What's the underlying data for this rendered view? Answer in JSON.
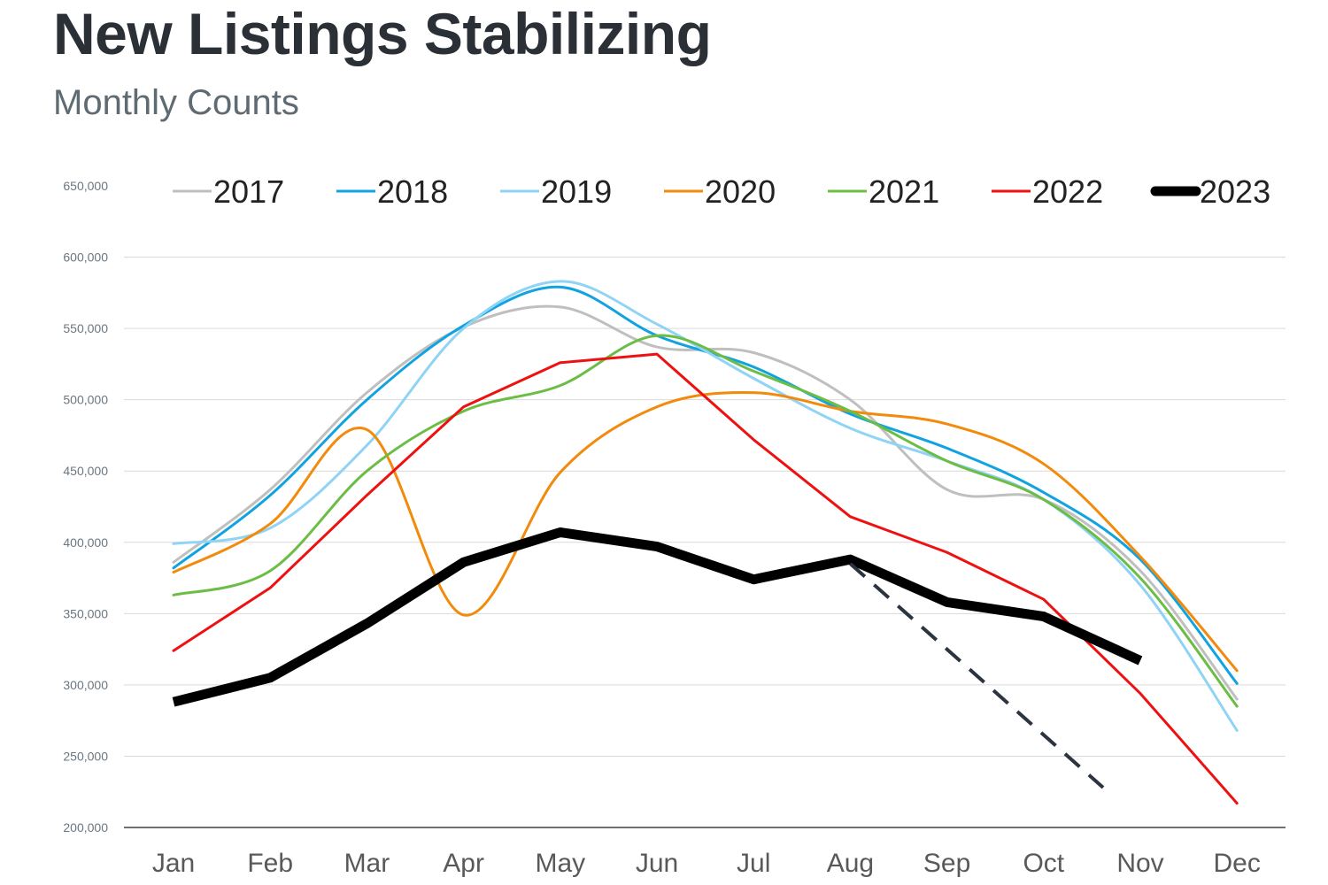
{
  "header": {
    "title": "New Listings Stabilizing",
    "subtitle": "Monthly Counts"
  },
  "chart_data": {
    "type": "line",
    "categories": [
      "Jan",
      "Feb",
      "Mar",
      "Apr",
      "May",
      "Jun",
      "Jul",
      "Aug",
      "Sep",
      "Oct",
      "Nov",
      "Dec"
    ],
    "ylim": [
      200000,
      650000
    ],
    "yticks": [
      200000,
      250000,
      300000,
      350000,
      400000,
      450000,
      500000,
      550000,
      600000,
      650000
    ],
    "ytick_labels": [
      "200,000",
      "250,000",
      "300,000",
      "350,000",
      "400,000",
      "450,000",
      "500,000",
      "550,000",
      "600,000",
      "650,000"
    ],
    "grid": true,
    "legend_position": "top",
    "series": [
      {
        "name": "2017",
        "color": "#bfbfbf",
        "values": [
          386000,
          437000,
          505000,
          551000,
          565000,
          537000,
          533000,
          500000,
          437000,
          430000,
          380000,
          290000
        ]
      },
      {
        "name": "2018",
        "color": "#10a3e0",
        "values": [
          382000,
          433000,
          500000,
          552000,
          579000,
          545000,
          523000,
          490000,
          466000,
          435000,
          388000,
          301000
        ]
      },
      {
        "name": "2019",
        "color": "#8fd3f5",
        "values": [
          399000,
          410000,
          468000,
          550000,
          583000,
          553000,
          515000,
          480000,
          457000,
          430000,
          370000,
          268000
        ]
      },
      {
        "name": "2020",
        "color": "#f28a0c",
        "values": [
          379000,
          413000,
          479000,
          349000,
          449000,
          495000,
          505000,
          492000,
          483000,
          455000,
          390000,
          310000
        ]
      },
      {
        "name": "2021",
        "color": "#6cbd45",
        "values": [
          363000,
          380000,
          450000,
          492000,
          510000,
          545000,
          520000,
          492000,
          457000,
          430000,
          375000,
          285000
        ]
      },
      {
        "name": "2022",
        "color": "#ee1111",
        "values": [
          324000,
          368000,
          433000,
          495000,
          526000,
          532000,
          472000,
          418000,
          393000,
          360000,
          294000,
          217000
        ]
      },
      {
        "name": "2023",
        "color": "#000000",
        "values": [
          288000,
          305000,
          343000,
          386000,
          407000,
          397000,
          374000,
          388000,
          358000,
          348000,
          317000,
          null
        ]
      }
    ],
    "annotations": [
      {
        "type": "dashed-trend",
        "color": "#2b3440",
        "from": {
          "x": "Aug",
          "y": 385000
        },
        "to": {
          "x": "Nov",
          "y": 228000
        }
      }
    ]
  }
}
